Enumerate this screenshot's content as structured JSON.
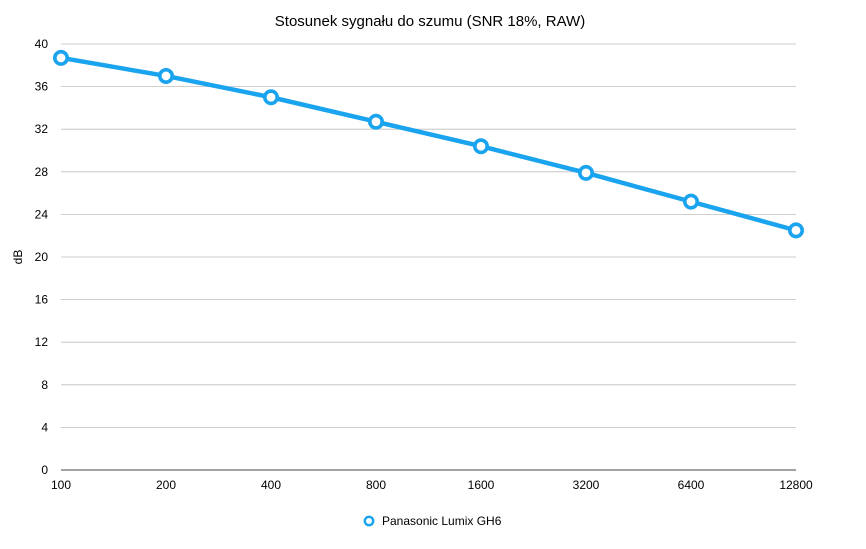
{
  "chart_data": {
    "type": "line",
    "title": "Stosunek sygnału do szumu (SNR 18%, RAW)",
    "xlabel": "",
    "ylabel": "dB",
    "categories": [
      "100",
      "200",
      "400",
      "800",
      "1600",
      "3200",
      "6400",
      "12800"
    ],
    "ylim": [
      0,
      40
    ],
    "yticks": [
      0,
      4,
      8,
      12,
      16,
      20,
      24,
      28,
      32,
      36,
      40
    ],
    "grid": true,
    "legend_position": "bottom",
    "series": [
      {
        "name": "Panasonic Lumix GH6",
        "color": "#1aa3ee",
        "values": [
          38.7,
          37.0,
          35.0,
          32.7,
          30.4,
          27.9,
          25.2,
          22.5
        ]
      }
    ]
  }
}
